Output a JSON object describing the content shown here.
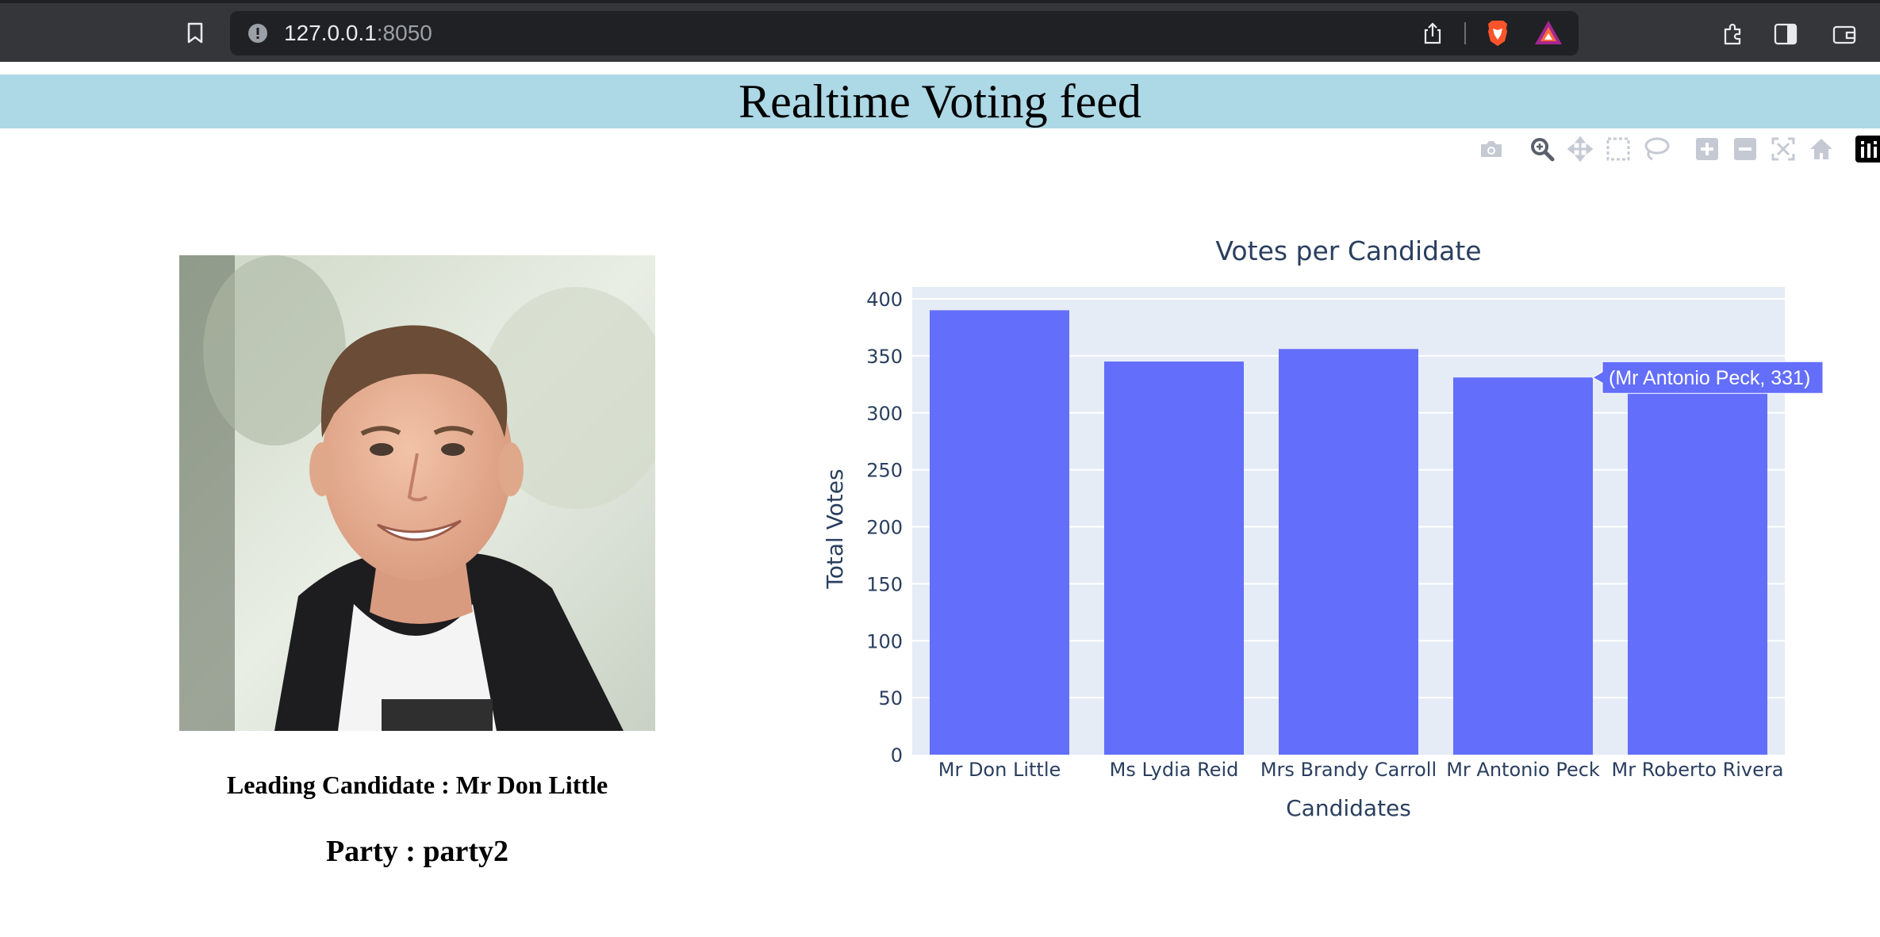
{
  "browser": {
    "url_host": "127.0.0.1",
    "url_port": ":8050"
  },
  "header": {
    "title": "Realtime Voting feed"
  },
  "modebar": {
    "icons": [
      "camera-icon",
      "zoom-icon",
      "pan-icon",
      "box-select-icon",
      "lasso-select-icon",
      "zoom-in-icon",
      "zoom-out-icon",
      "autoscale-icon",
      "reset-axes-icon",
      "plotly-logo-icon"
    ]
  },
  "leader": {
    "label": "Leading Candidate : Mr Don Little",
    "party": "Party : party2"
  },
  "hover": {
    "text": "(Mr Antonio Peck, 331)"
  },
  "colors": {
    "banner": "#add8e6",
    "bar": "#636efa",
    "plot_bg": "#e5ecf6"
  },
  "chart_data": {
    "type": "bar",
    "title": "Votes per Candidate",
    "xlabel": "Candidates",
    "ylabel": "Total Votes",
    "categories": [
      "Mr Don Little",
      "Ms Lydia Reid",
      "Mrs Brandy Carroll",
      "Mr Antonio Peck",
      "Mr Roberto Rivera"
    ],
    "values": [
      390,
      345,
      356,
      331,
      331
    ],
    "ylim": [
      0,
      400
    ],
    "yticks": [
      0,
      50,
      100,
      150,
      200,
      250,
      300,
      350,
      400
    ],
    "grid": true,
    "hover_index": 3
  }
}
